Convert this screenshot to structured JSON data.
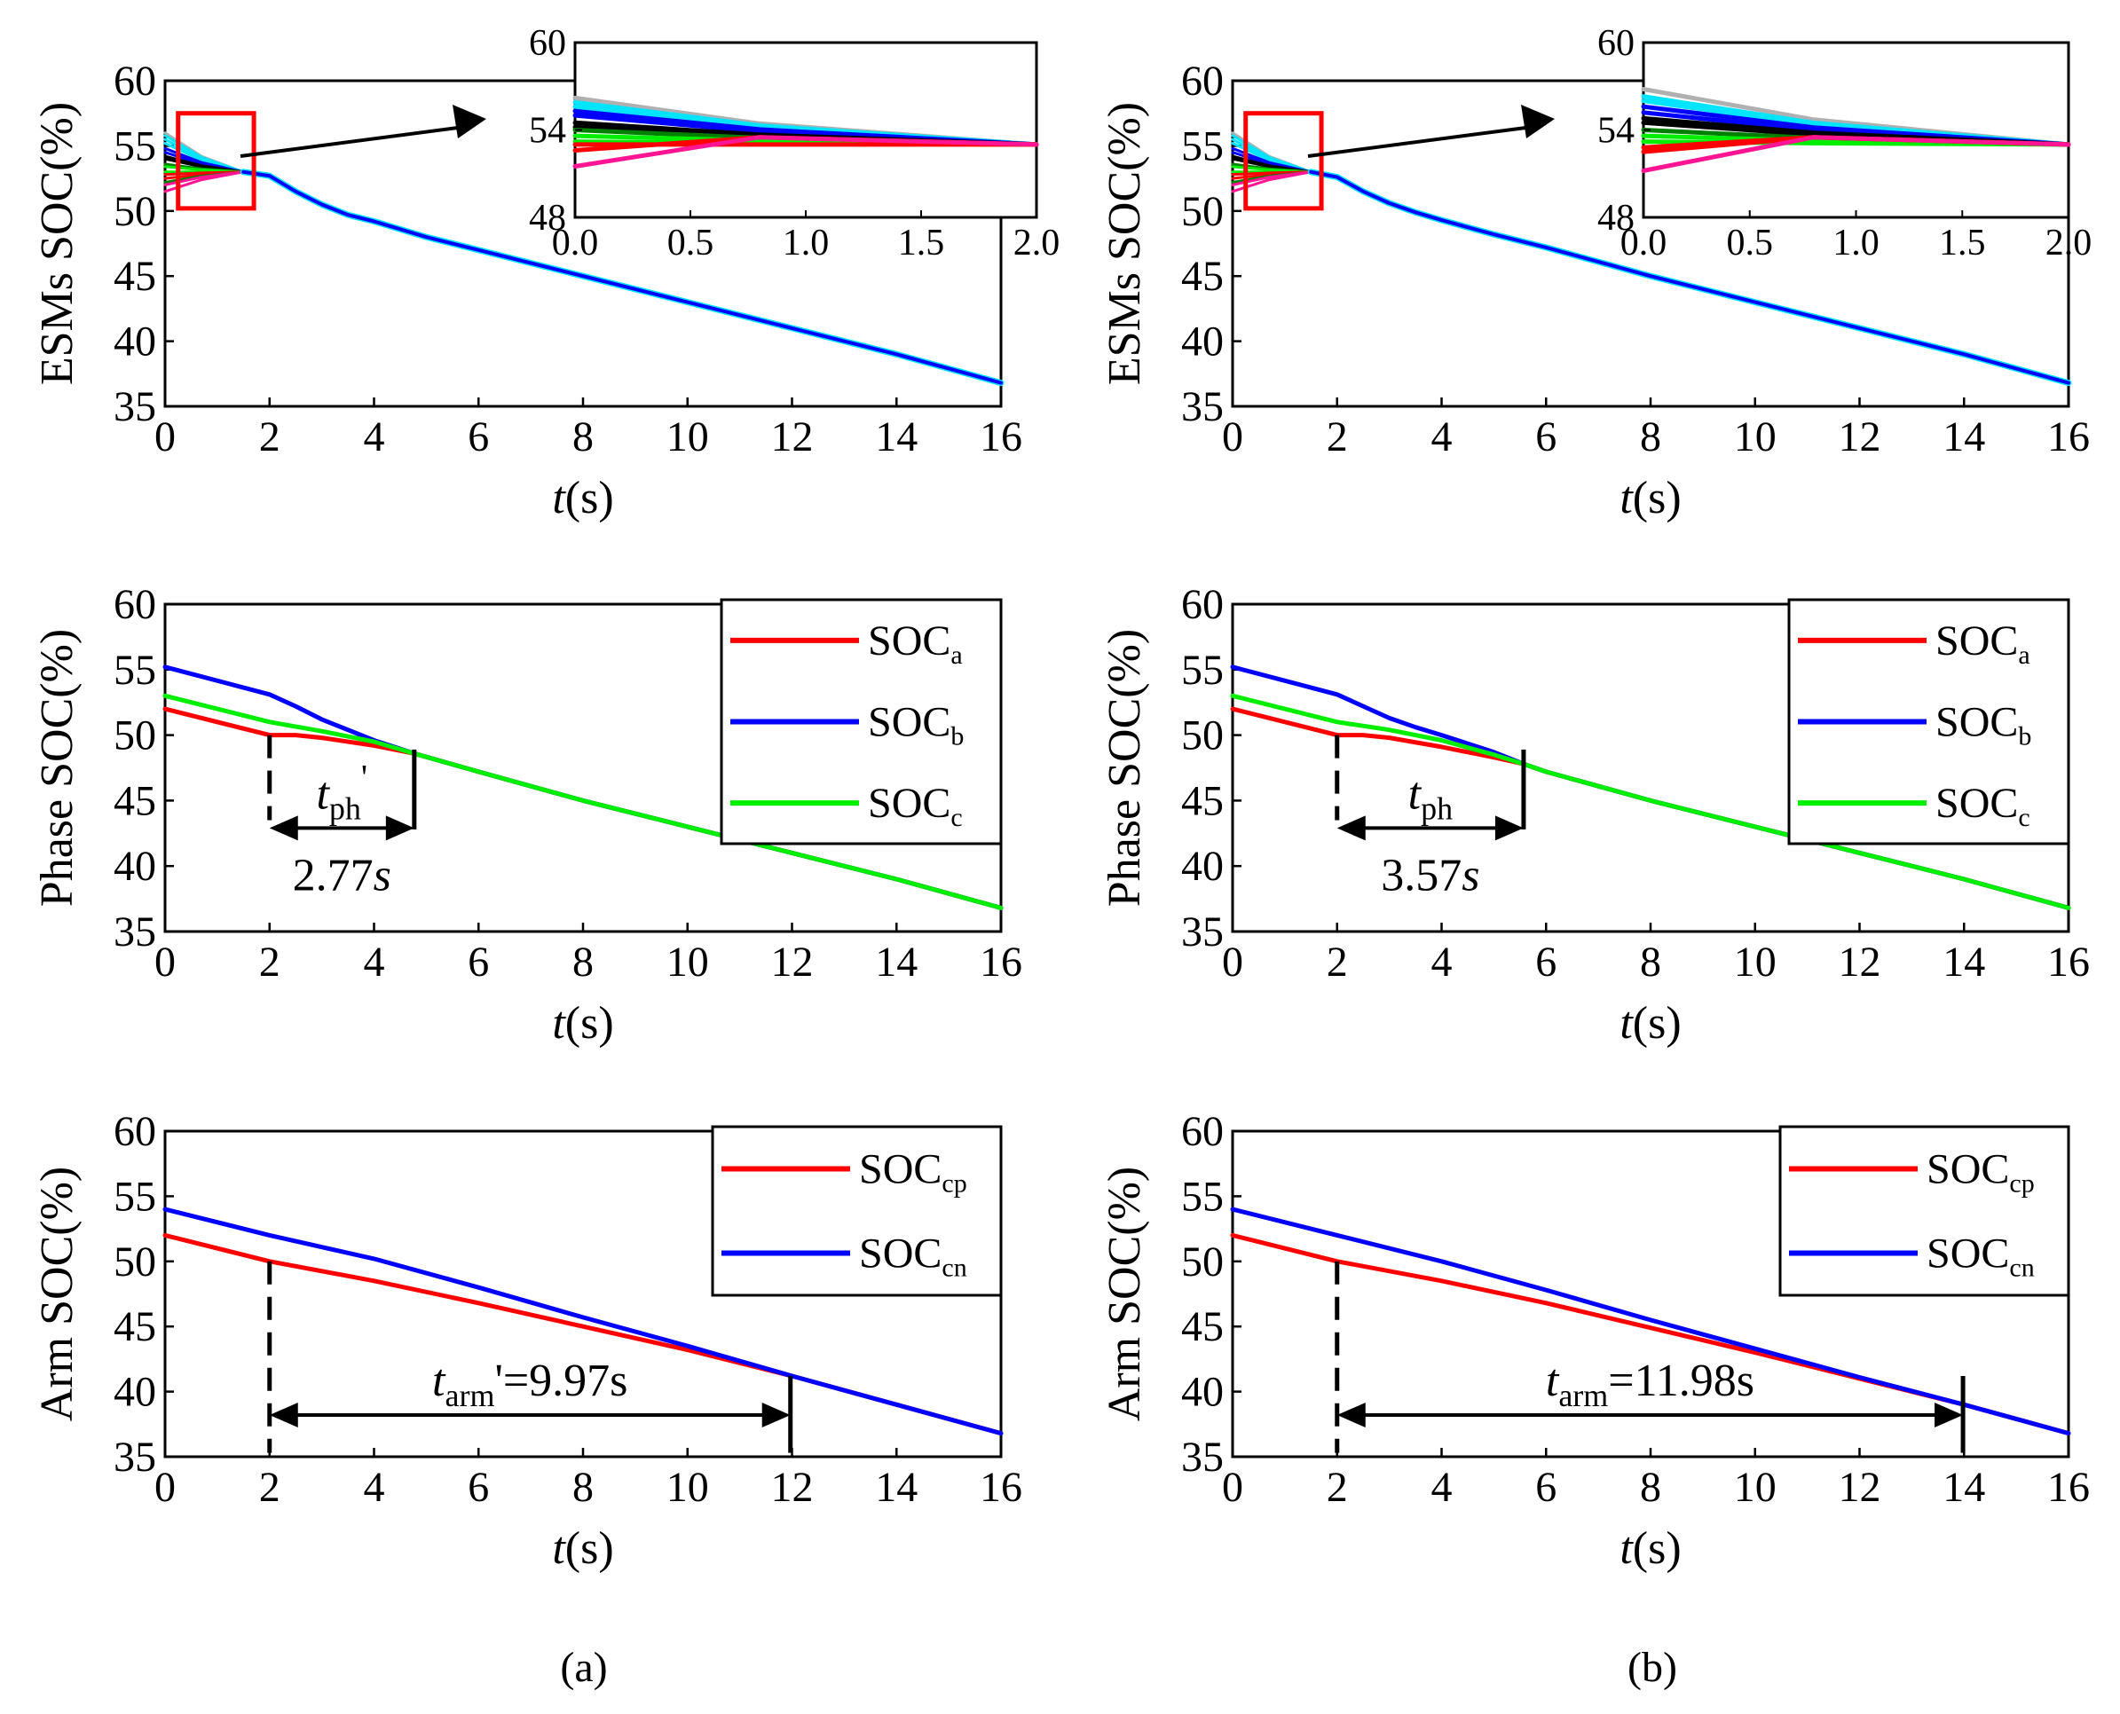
{
  "colors": {
    "red": "#ff0000",
    "blue": "#0000ff",
    "green": "#00ee00",
    "cyan": "#00e5ff",
    "black": "#000000",
    "magenta": "#ff1493",
    "gray": "#b0b0b0",
    "darkgreen": "#008000"
  },
  "labels": {
    "xlabel_italic": "t",
    "xlabel_rest": "(s)",
    "ylabel_esm": "ESMs SOC(%)",
    "ylabel_phase": "Phase SOC(%)",
    "ylabel_arm": "Arm SOC(%)",
    "caption_a": "(a)",
    "caption_b": "(b)",
    "soc": "SOC",
    "sub_a": "a",
    "sub_b": "b",
    "sub_c": "c",
    "sub_cp": "cp",
    "sub_cn": "cn",
    "t": "t",
    "ph": "ph",
    "arm": "arm",
    "prime": "'",
    "tph_prime_value": "2.77",
    "tph_value": "3.57",
    "s_italic": "s",
    "tarm_prime_text": "'=9.97s",
    "tarm_text": "=11.98s"
  },
  "chart_data": [
    {
      "id": "a-esm",
      "type": "line",
      "xlim": [
        0,
        16
      ],
      "ylim": [
        35,
        60
      ],
      "xticks": [
        0,
        2,
        4,
        6,
        8,
        10,
        12,
        14,
        16
      ],
      "yticks": [
        35,
        40,
        45,
        50,
        55,
        60
      ],
      "xlabel": "t(s)",
      "ylabel": "ESMs SOC(%)",
      "start_values": [
        56,
        55.8,
        55.5,
        55.2,
        54.8,
        54.5,
        54.2,
        54,
        53.6,
        53.4,
        53,
        52.8,
        52.5,
        52.2,
        52,
        51.5
      ],
      "converged": {
        "x": [
          1.5,
          2,
          2.5,
          3,
          3.5,
          4,
          5,
          6,
          8,
          10,
          12,
          14,
          16
        ],
        "y": [
          53,
          52.7,
          51.5,
          50.5,
          49.7,
          49.2,
          48,
          47,
          45,
          43,
          41,
          39,
          36.8
        ]
      },
      "inset": {
        "xlim": [
          0,
          2.0
        ],
        "ylim": [
          48,
          60
        ],
        "xticks": [
          0.0,
          0.5,
          1.0,
          1.5,
          2.0
        ],
        "xtick_labels": [
          "0.0",
          "0.5",
          "1.0",
          "1.5",
          "2.0"
        ],
        "yticks": [
          48,
          54,
          60
        ],
        "series_start": [
          56.2,
          55.9,
          55.6,
          55.3,
          55.0,
          54.5,
          54.2,
          54.0,
          53.6,
          53.2,
          53.0,
          52.6,
          51.5
        ],
        "series_end": 53.0
      }
    },
    {
      "id": "a-phase",
      "type": "line",
      "xlim": [
        0,
        16
      ],
      "ylim": [
        35,
        60
      ],
      "xticks": [
        0,
        2,
        4,
        6,
        8,
        10,
        12,
        14,
        16
      ],
      "yticks": [
        35,
        40,
        45,
        50,
        55,
        60
      ],
      "xlabel": "t(s)",
      "ylabel": "Phase SOC(%)",
      "legend": [
        "SOCa",
        "SOCb",
        "SOCc"
      ],
      "series": [
        {
          "name": "SOCa",
          "x": [
            0,
            2,
            2.5,
            3,
            4,
            4.77,
            6,
            8,
            10,
            12,
            14,
            16
          ],
          "y": [
            52,
            50,
            50,
            49.8,
            49.2,
            48.6,
            47.2,
            45,
            43,
            41,
            39,
            36.8
          ]
        },
        {
          "name": "SOCb",
          "x": [
            0,
            2,
            2.5,
            3,
            3.5,
            4,
            4.77,
            6,
            8,
            10,
            12,
            14,
            16
          ],
          "y": [
            55.2,
            53.1,
            52.2,
            51.2,
            50.4,
            49.6,
            48.6,
            47.2,
            45,
            43,
            41,
            39,
            36.8
          ]
        },
        {
          "name": "SOCc",
          "x": [
            0,
            2,
            3,
            4,
            4.77,
            6,
            8,
            10,
            12,
            14,
            16
          ],
          "y": [
            53,
            51,
            50.3,
            49.5,
            48.6,
            47.2,
            45,
            43,
            41,
            39,
            36.8
          ]
        }
      ],
      "annotation": {
        "t_start": 2,
        "t_end": 4.77,
        "value": "2.77s"
      }
    },
    {
      "id": "a-arm",
      "type": "line",
      "xlim": [
        0,
        16
      ],
      "ylim": [
        35,
        60
      ],
      "xticks": [
        0,
        2,
        4,
        6,
        8,
        10,
        12,
        14,
        16
      ],
      "yticks": [
        35,
        40,
        45,
        50,
        55,
        60
      ],
      "xlabel": "t(s)",
      "ylabel": "Arm SOC(%)",
      "legend": [
        "SOCcp",
        "SOCcn"
      ],
      "series": [
        {
          "name": "SOCcp",
          "x": [
            0,
            2,
            4,
            6,
            8,
            10,
            12,
            14,
            16
          ],
          "y": [
            52,
            50,
            48.5,
            46.8,
            45,
            43.2,
            41.2,
            39,
            36.8
          ]
        },
        {
          "name": "SOCcn",
          "x": [
            0,
            2,
            4,
            6,
            8,
            10,
            12,
            14,
            16
          ],
          "y": [
            54,
            52,
            50.2,
            48,
            45.7,
            43.5,
            41.2,
            39,
            36.8
          ]
        }
      ],
      "annotation": {
        "t_start": 2,
        "t_end": 11.97,
        "value": "9.97s"
      }
    },
    {
      "id": "b-esm",
      "type": "line",
      "xlim": [
        0,
        16
      ],
      "ylim": [
        35,
        60
      ],
      "xticks": [
        0,
        2,
        4,
        6,
        8,
        10,
        12,
        14,
        16
      ],
      "yticks": [
        35,
        40,
        45,
        50,
        55,
        60
      ],
      "xlabel": "t(s)",
      "ylabel": "ESMs SOC(%)",
      "start_values": [
        56,
        55.8,
        55.5,
        55.2,
        54.8,
        54.5,
        54.2,
        54,
        53.6,
        53.4,
        53,
        52.8,
        52.5,
        52.2,
        52,
        51.5
      ],
      "converged": {
        "x": [
          1.5,
          2,
          2.5,
          3,
          3.5,
          4,
          5,
          6,
          8,
          10,
          12,
          14,
          16
        ],
        "y": [
          53,
          52.6,
          51.5,
          50.6,
          49.9,
          49.3,
          48.2,
          47.2,
          45,
          43,
          41,
          39,
          36.8
        ]
      },
      "inset": {
        "xlim": [
          0,
          2.0
        ],
        "ylim": [
          48,
          60
        ],
        "xticks": [
          0.0,
          0.5,
          1.0,
          1.5,
          2.0
        ],
        "xtick_labels": [
          "0.0",
          "0.5",
          "1.0",
          "1.5",
          "2.0"
        ],
        "yticks": [
          48,
          54,
          60
        ],
        "series_start": [
          56.8,
          56.3,
          56.0,
          55.6,
          55.2,
          54.8,
          54.5,
          54.0,
          53.6,
          53.2,
          52.8,
          52.5,
          51.2
        ],
        "series_end": 53.0
      }
    },
    {
      "id": "b-phase",
      "type": "line",
      "xlim": [
        0,
        16
      ],
      "ylim": [
        35,
        60
      ],
      "xticks": [
        0,
        2,
        4,
        6,
        8,
        10,
        12,
        14,
        16
      ],
      "yticks": [
        35,
        40,
        45,
        50,
        55,
        60
      ],
      "xlabel": "t(s)",
      "ylabel": "Phase SOC(%)",
      "legend": [
        "SOCa",
        "SOCb",
        "SOCc"
      ],
      "series": [
        {
          "name": "SOCa",
          "x": [
            0,
            2,
            2.5,
            3,
            4,
            5,
            5.57,
            6,
            8,
            10,
            12,
            14,
            16
          ],
          "y": [
            52,
            50,
            50,
            49.8,
            49.1,
            48.3,
            47.8,
            47.2,
            45,
            43,
            41,
            39,
            36.8
          ]
        },
        {
          "name": "SOCb",
          "x": [
            0,
            2,
            2.5,
            3,
            3.5,
            4,
            5,
            5.57,
            6,
            8,
            10,
            12,
            14,
            16
          ],
          "y": [
            55.2,
            53.1,
            52.2,
            51.3,
            50.6,
            50,
            48.7,
            47.8,
            47.2,
            45,
            43,
            41,
            39,
            36.8
          ]
        },
        {
          "name": "SOCc",
          "x": [
            0,
            2,
            3,
            4,
            5,
            5.57,
            6,
            8,
            10,
            12,
            14,
            16
          ],
          "y": [
            53,
            51,
            50.4,
            49.6,
            48.5,
            47.8,
            47.2,
            45,
            43,
            41,
            39,
            36.8
          ]
        }
      ],
      "annotation": {
        "t_start": 2,
        "t_end": 5.57,
        "value": "3.57s"
      }
    },
    {
      "id": "b-arm",
      "type": "line",
      "xlim": [
        0,
        16
      ],
      "ylim": [
        35,
        60
      ],
      "xticks": [
        0,
        2,
        4,
        6,
        8,
        10,
        12,
        14,
        16
      ],
      "yticks": [
        35,
        40,
        45,
        50,
        55,
        60
      ],
      "xlabel": "t(s)",
      "ylabel": "Arm SOC(%)",
      "legend": [
        "SOCcp",
        "SOCcn"
      ],
      "series": [
        {
          "name": "SOCcp",
          "x": [
            0,
            2,
            4,
            6,
            8,
            10,
            12,
            14,
            16
          ],
          "y": [
            52,
            50,
            48.5,
            46.8,
            44.9,
            43,
            41,
            39,
            36.8
          ]
        },
        {
          "name": "SOCcn",
          "x": [
            0,
            2,
            4,
            6,
            8,
            10,
            12,
            14,
            16
          ],
          "y": [
            54,
            52,
            50,
            47.8,
            45.5,
            43.3,
            41.1,
            39,
            36.8
          ]
        }
      ],
      "annotation": {
        "t_start": 2,
        "t_end": 13.98,
        "value": "11.98s"
      }
    }
  ]
}
